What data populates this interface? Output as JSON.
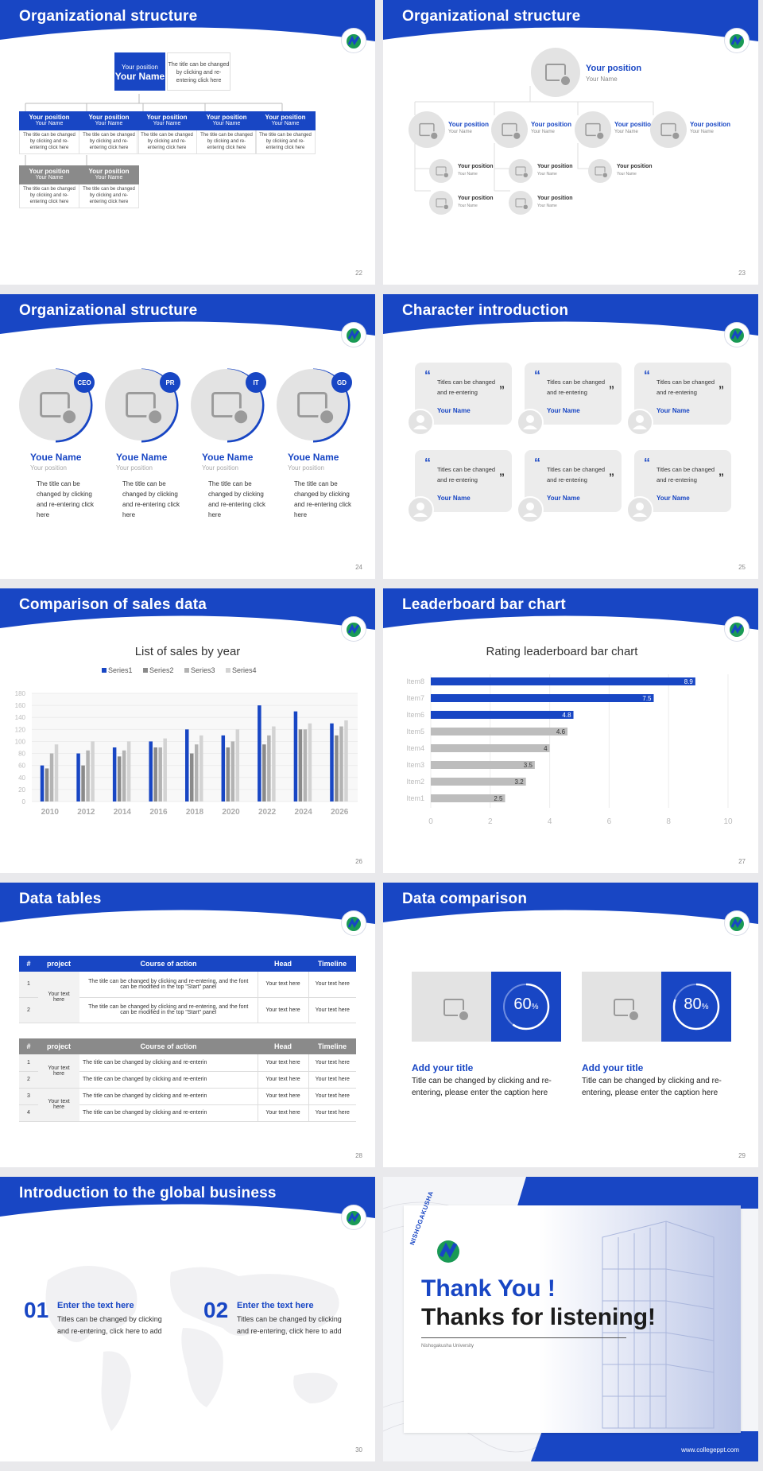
{
  "slides": {
    "s22": {
      "title": "Organizational structure",
      "page": "22",
      "top": {
        "position": "Your position",
        "name": "Your Name",
        "text": "The title can be changed by clicking and re-entering click here"
      },
      "boxes": [
        {
          "position": "Your position",
          "name": "Your Name",
          "text": "The title can be changed by clicking and re-entering click here"
        },
        {
          "position": "Your position",
          "name": "Your Name",
          "text": "The title can be changed by clicking and re-entering click here"
        },
        {
          "position": "Your position",
          "name": "Your Name",
          "text": "The title can be changed by clicking and re-entering click here"
        },
        {
          "position": "Your position",
          "name": "Your Name",
          "text": "The title can be changed by clicking and re-entering click here"
        },
        {
          "position": "Your position",
          "name": "Your Name",
          "text": "The title can be changed by clicking and re-entering click here"
        },
        {
          "position": "Your position",
          "name": "Your Name",
          "text": "The title can be changed by clicking and re-entering click here"
        },
        {
          "position": "Your position",
          "name": "Your Name",
          "text": "The title can be changed by clicking and re-entering click here"
        }
      ]
    },
    "s23": {
      "title": "Organizational structure",
      "page": "23",
      "top": {
        "position": "Your position",
        "name": "Your Name"
      },
      "level2": [
        {
          "position": "Your position",
          "name": "Your Name"
        },
        {
          "position": "Your position",
          "name": "Your Name"
        },
        {
          "position": "Your position",
          "name": "Your Name"
        },
        {
          "position": "Your position",
          "name": "Your Name"
        }
      ],
      "level3": [
        {
          "position": "Your position",
          "name": "Your Name"
        },
        {
          "position": "Your position",
          "name": "Your Name"
        },
        {
          "position": "Your position",
          "name": "Your Name"
        },
        {
          "position": "Your position",
          "name": "Your Name"
        },
        {
          "position": "Your position",
          "name": "Your Name"
        }
      ]
    },
    "s24": {
      "title": "Organizational structure",
      "page": "24",
      "members": [
        {
          "badge": "CEO",
          "name": "Youe Name",
          "position": "Your position",
          "text": "The title can be changed by clicking and re-entering click here"
        },
        {
          "badge": "PR",
          "name": "Youe Name",
          "position": "Your position",
          "text": "The title can be changed by clicking and re-entering click here"
        },
        {
          "badge": "IT",
          "name": "Youe Name",
          "position": "Your position",
          "text": "The title can be changed by clicking and re-entering click here"
        },
        {
          "badge": "GD",
          "name": "Youe Name",
          "position": "Your position",
          "text": "The title can be changed by clicking and re-entering click here"
        }
      ]
    },
    "s25": {
      "title": "Character introduction",
      "page": "25",
      "cards": [
        {
          "quote": "Titles can be changed and re-entering",
          "name": "Your Name"
        },
        {
          "quote": "Titles can be changed and re-entering",
          "name": "Your Name"
        },
        {
          "quote": "Titles can be changed and re-entering",
          "name": "Your Name"
        },
        {
          "quote": "Titles can be changed and re-entering",
          "name": "Your Name"
        },
        {
          "quote": "Titles can be changed and re-entering",
          "name": "Your Name"
        },
        {
          "quote": "Titles can be changed and re-entering",
          "name": "Your Name"
        }
      ]
    },
    "s26": {
      "title": "Comparison of sales data",
      "page": "26"
    },
    "s27": {
      "title": "Leaderboard bar chart",
      "page": "27"
    },
    "s28": {
      "title": "Data tables",
      "page": "28",
      "table1": {
        "headers": [
          "#",
          "project",
          "Course of action",
          "Head",
          "Timeline"
        ],
        "project": "Your text here",
        "rows": [
          {
            "n": "1",
            "action": "The title can be changed by clicking and re-entering, and the font can be modified in the top \"Start\" panel",
            "head": "Your text here",
            "timeline": "Your text here"
          },
          {
            "n": "2",
            "action": "The title can be changed by clicking and re-entering, and the font can be modified in the top \"Start\" panel",
            "head": "Your text here",
            "timeline": "Your text here"
          }
        ]
      },
      "table2": {
        "headers": [
          "#",
          "project",
          "Course of action",
          "Head",
          "Timeline"
        ],
        "project1": "Your text here",
        "project2": "Your text here",
        "rows": [
          {
            "n": "1",
            "action": "The title can be changed by clicking and re-enterin",
            "head": "Your text here",
            "timeline": "Your text here"
          },
          {
            "n": "2",
            "action": "The title can be changed by clicking and re-enterin",
            "head": "Your text here",
            "timeline": "Your text here"
          },
          {
            "n": "3",
            "action": "The title can be changed by clicking and re-enterin",
            "head": "Your text here",
            "timeline": "Your text here"
          },
          {
            "n": "4",
            "action": "The title can be changed by clicking and re-enterin",
            "head": "Your text here",
            "timeline": "Your text here"
          }
        ]
      }
    },
    "s29": {
      "title": "Data comparison",
      "page": "29",
      "items": [
        {
          "value": 60,
          "num": "60",
          "unit": "%",
          "heading": "Add your title",
          "text": "Title can be changed by clicking and re-entering, please enter the caption here"
        },
        {
          "value": 80,
          "num": "80",
          "unit": "%",
          "heading": "Add your title",
          "text": "Title can be changed by clicking and re-entering, please enter the caption here"
        }
      ]
    },
    "s30": {
      "title": "Introduction to the global business",
      "page": "30",
      "items": [
        {
          "num": "01",
          "heading": "Enter the text here",
          "text": "Titles can be changed by clicking and re-entering, click here to add"
        },
        {
          "num": "02",
          "heading": "Enter the text here",
          "text": "Titles can be changed by clicking and re-entering, click here to add"
        }
      ]
    },
    "s31": {
      "line1": "Thank You !",
      "line2": "Thanks for listening!",
      "university": "Nishogakusha University",
      "url": "www.collegeppt.com",
      "logo_text": "NISHOGAKUSHA"
    }
  },
  "chart_data": [
    {
      "type": "bar",
      "title": "List of sales by year",
      "categories": [
        "2010",
        "2012",
        "2014",
        "2016",
        "2018",
        "2020",
        "2022",
        "2024",
        "2026"
      ],
      "series": [
        {
          "name": "Series1",
          "values": [
            60,
            80,
            90,
            100,
            120,
            110,
            160,
            150,
            130
          ]
        },
        {
          "name": "Series2",
          "values": [
            55,
            60,
            75,
            90,
            80,
            90,
            95,
            120,
            110
          ]
        },
        {
          "name": "Series3",
          "values": [
            80,
            85,
            85,
            90,
            95,
            100,
            110,
            120,
            125
          ]
        },
        {
          "name": "Series4",
          "values": [
            95,
            100,
            100,
            105,
            110,
            120,
            125,
            130,
            135
          ]
        }
      ],
      "ylim": [
        0,
        180
      ],
      "yticks": [
        "0",
        "20",
        "40",
        "60",
        "80",
        "100",
        "120",
        "140",
        "160",
        "180"
      ],
      "colors": [
        "#1846c4",
        "#8a8a8a",
        "#b3b3b3",
        "#d3d3d3"
      ],
      "legend": "top"
    },
    {
      "type": "bar",
      "orientation": "horizontal",
      "title": "Rating leaderboard bar chart",
      "categories": [
        "Item8",
        "Item7",
        "Item6",
        "Item5",
        "Item4",
        "Item3",
        "Item2",
        "Item1"
      ],
      "values": [
        8.9,
        7.5,
        4.8,
        4.6,
        4,
        3.5,
        3.2,
        2.5
      ],
      "labels": [
        "8.9",
        "7.5",
        "4.8",
        "4.6",
        "4",
        "3.5",
        "3.2",
        "2.5"
      ],
      "xlim": [
        0,
        10
      ],
      "xticks": [
        "0",
        "2",
        "4",
        "6",
        "8",
        "10"
      ],
      "highlight_top": 3,
      "colors": [
        "#1846c4",
        "#bdbdbd"
      ]
    }
  ],
  "colors": {
    "primary": "#1846c4",
    "gray": "#8a8a8a",
    "light": "#e3e3e3"
  }
}
